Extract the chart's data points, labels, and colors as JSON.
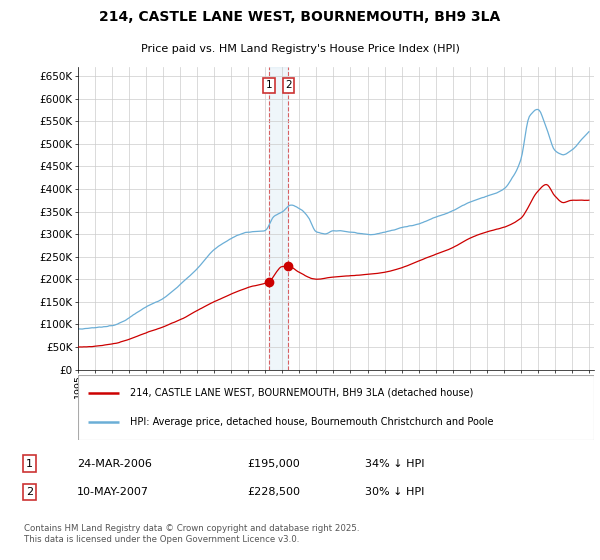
{
  "title": "214, CASTLE LANE WEST, BOURNEMOUTH, BH9 3LA",
  "subtitle": "Price paid vs. HM Land Registry's House Price Index (HPI)",
  "ylabel_ticks": [
    "£0",
    "£50K",
    "£100K",
    "£150K",
    "£200K",
    "£250K",
    "£300K",
    "£350K",
    "£400K",
    "£450K",
    "£500K",
    "£550K",
    "£600K",
    "£650K"
  ],
  "ytick_values": [
    0,
    50000,
    100000,
    150000,
    200000,
    250000,
    300000,
    350000,
    400000,
    450000,
    500000,
    550000,
    600000,
    650000
  ],
  "ylim": [
    0,
    670000
  ],
  "sale1_date": "24-MAR-2006",
  "sale1_price": 195000,
  "sale1_label": "£195,000",
  "sale1_hpi_pct": "34% ↓ HPI",
  "sale1_x": 2006.22,
  "sale2_date": "10-MAY-2007",
  "sale2_price": 228500,
  "sale2_label": "£228,500",
  "sale2_hpi_pct": "30% ↓ HPI",
  "sale2_x": 2007.36,
  "legend_line1": "214, CASTLE LANE WEST, BOURNEMOUTH, BH9 3LA (detached house)",
  "legend_line2": "HPI: Average price, detached house, Bournemouth Christchurch and Poole",
  "footer": "Contains HM Land Registry data © Crown copyright and database right 2025.\nThis data is licensed under the Open Government Licence v3.0.",
  "red_color": "#cc0000",
  "blue_color": "#6baed6",
  "background_color": "#ffffff",
  "grid_color": "#cccccc"
}
